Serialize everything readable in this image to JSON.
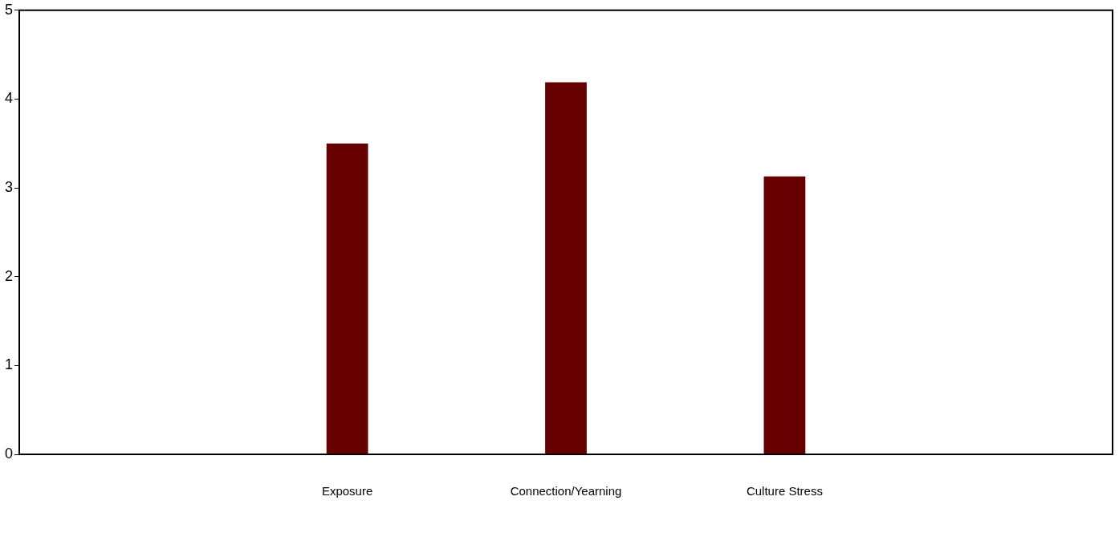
{
  "chart_data": {
    "type": "bar",
    "categories": [
      null,
      "Exposure",
      "Connection/Yearning",
      "Culture Stress",
      null
    ],
    "values": [
      0.01,
      3.5,
      4.19,
      3.13,
      0.01
    ],
    "color": "#660000",
    "ylim": [
      0,
      5
    ],
    "yticks": [
      0,
      1,
      2,
      3,
      4,
      5
    ],
    "grid": false,
    "legend": false
  }
}
